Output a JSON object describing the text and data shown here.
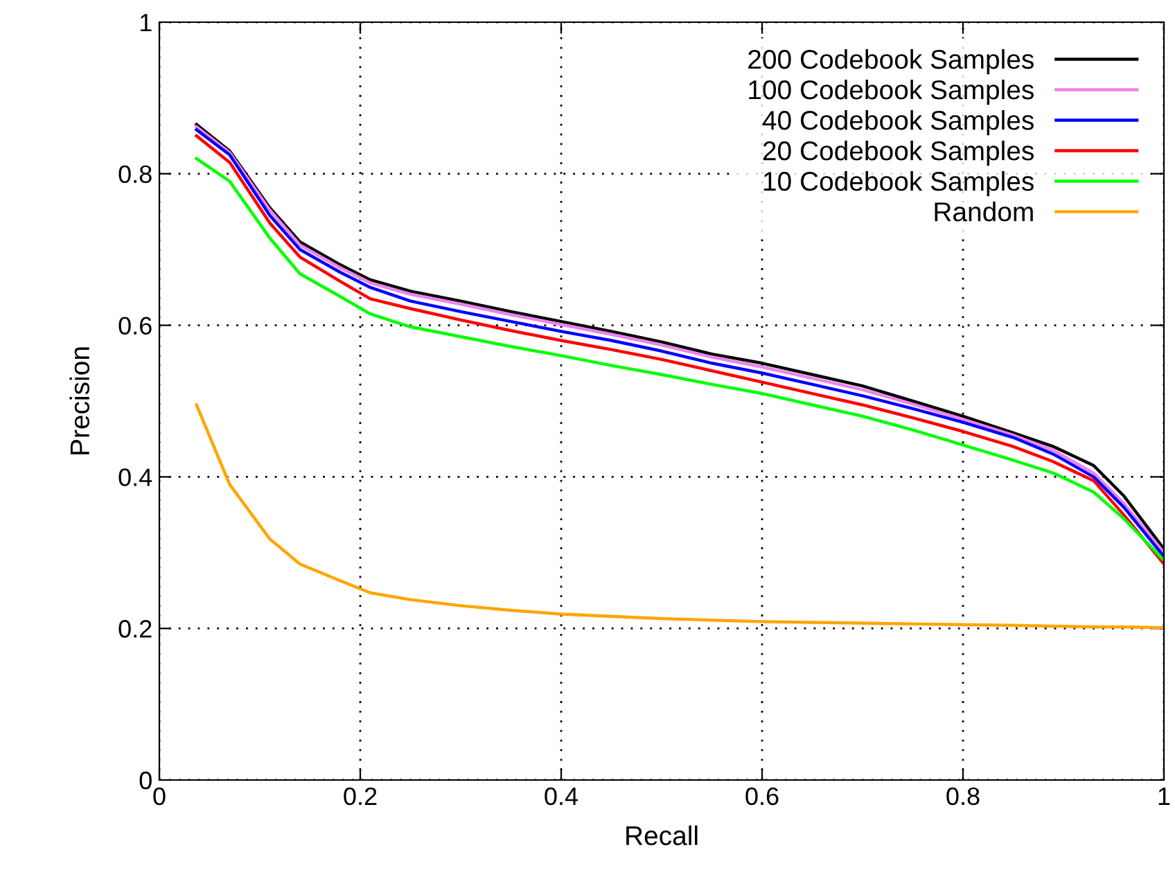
{
  "chart_data": {
    "type": "line",
    "xlabel": "Recall",
    "ylabel": "Precision",
    "x": [
      0.037,
      0.07,
      0.11,
      0.14,
      0.18,
      0.21,
      0.25,
      0.3,
      0.35,
      0.4,
      0.45,
      0.5,
      0.55,
      0.6,
      0.65,
      0.7,
      0.75,
      0.8,
      0.85,
      0.89,
      0.93,
      0.96,
      1.0
    ],
    "series": [
      {
        "name": "200 Codebook Samples",
        "color": "#000000",
        "values": [
          0.865,
          0.83,
          0.755,
          0.71,
          0.68,
          0.66,
          0.645,
          0.632,
          0.618,
          0.605,
          0.592,
          0.578,
          0.562,
          0.55,
          0.535,
          0.52,
          0.5,
          0.48,
          0.458,
          0.44,
          0.415,
          0.375,
          0.305
        ]
      },
      {
        "name": "100 Codebook Samples",
        "color": "#ee82ee",
        "values": [
          0.862,
          0.828,
          0.752,
          0.706,
          0.676,
          0.656,
          0.641,
          0.628,
          0.614,
          0.601,
          0.588,
          0.574,
          0.558,
          0.545,
          0.53,
          0.515,
          0.496,
          0.476,
          0.455,
          0.435,
          0.405,
          0.365,
          0.3
        ]
      },
      {
        "name": "40 Codebook Samples",
        "color": "#0000ff",
        "values": [
          0.858,
          0.825,
          0.745,
          0.7,
          0.67,
          0.65,
          0.632,
          0.618,
          0.605,
          0.592,
          0.58,
          0.566,
          0.55,
          0.537,
          0.522,
          0.507,
          0.49,
          0.472,
          0.452,
          0.43,
          0.4,
          0.36,
          0.295
        ]
      },
      {
        "name": "20 Codebook Samples",
        "color": "#ff0000",
        "values": [
          0.85,
          0.815,
          0.735,
          0.69,
          0.658,
          0.635,
          0.622,
          0.607,
          0.593,
          0.58,
          0.568,
          0.555,
          0.54,
          0.525,
          0.51,
          0.495,
          0.478,
          0.46,
          0.44,
          0.42,
          0.395,
          0.35,
          0.285
        ]
      },
      {
        "name": "10 Codebook Samples",
        "color": "#00ff00",
        "values": [
          0.82,
          0.79,
          0.715,
          0.668,
          0.638,
          0.615,
          0.598,
          0.585,
          0.572,
          0.56,
          0.547,
          0.535,
          0.522,
          0.51,
          0.495,
          0.48,
          0.462,
          0.442,
          0.422,
          0.405,
          0.38,
          0.345,
          0.29
        ]
      },
      {
        "name": "Random",
        "color": "#ffa500",
        "values": [
          0.495,
          0.39,
          0.318,
          0.285,
          0.263,
          0.247,
          0.238,
          0.23,
          0.224,
          0.219,
          0.216,
          0.213,
          0.211,
          0.209,
          0.208,
          0.207,
          0.206,
          0.205,
          0.204,
          0.203,
          0.202,
          0.202,
          0.201
        ]
      }
    ],
    "xlim": [
      0,
      1
    ],
    "ylim": [
      0,
      1
    ],
    "xticks": [
      0,
      0.2,
      0.4,
      0.6,
      0.8,
      1
    ],
    "yticks": [
      0,
      0.2,
      0.4,
      0.6,
      0.8,
      1
    ],
    "grid": true,
    "legend": "top right",
    "line_style": "solid"
  }
}
